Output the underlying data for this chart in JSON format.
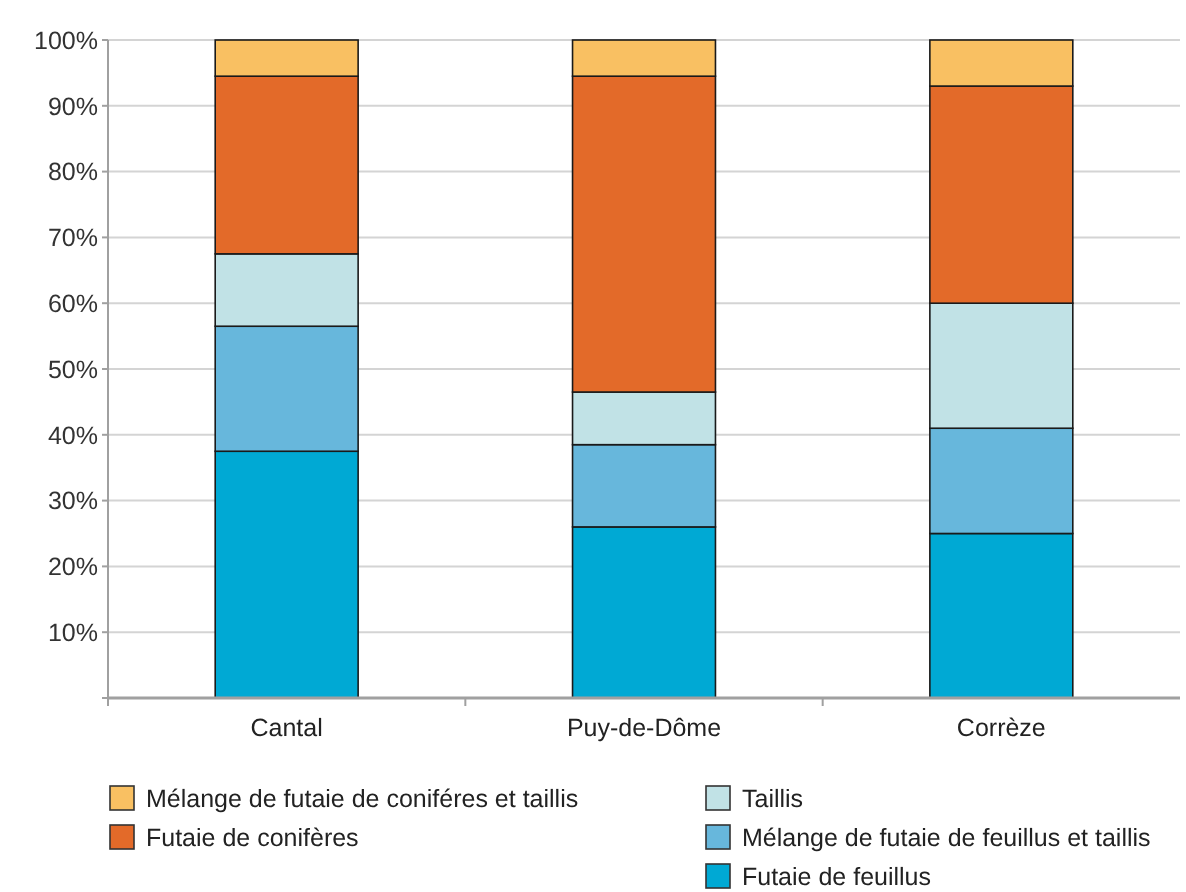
{
  "chart_data": {
    "type": "bar",
    "stacked": true,
    "categories": [
      "Cantal",
      "Puy-de-Dôme",
      "Corrèze"
    ],
    "series": [
      {
        "name": "Futaie de feuillus",
        "color": "#00a9d4",
        "values": [
          37.5,
          26,
          25
        ]
      },
      {
        "name": "Mélange de futaie de feuillus et taillis",
        "color": "#67b7dc",
        "values": [
          19,
          12.5,
          16
        ]
      },
      {
        "name": "Taillis",
        "color": "#c1e2e6",
        "values": [
          11,
          8,
          19
        ]
      },
      {
        "name": "Futaie de conifères",
        "color": "#e36a29",
        "values": [
          27,
          48,
          33
        ]
      },
      {
        "name": "Mélange de futaie de coniféres et taillis",
        "color": "#f9c062",
        "values": [
          5.5,
          5.5,
          7
        ]
      }
    ],
    "ylim": [
      0,
      100
    ],
    "yticks": [
      {
        "value": 0,
        "label": null
      },
      {
        "value": 10,
        "label": "10%"
      },
      {
        "value": 20,
        "label": "20%"
      },
      {
        "value": 30,
        "label": "30%"
      },
      {
        "value": 40,
        "label": "40%"
      },
      {
        "value": 50,
        "label": "50%"
      },
      {
        "value": 60,
        "label": "60%"
      },
      {
        "value": 70,
        "label": "70%"
      },
      {
        "value": 80,
        "label": "80%"
      },
      {
        "value": 90,
        "label": "90%"
      },
      {
        "value": 100,
        "label": "100%"
      }
    ],
    "grid": "y",
    "legend": "bottom"
  }
}
